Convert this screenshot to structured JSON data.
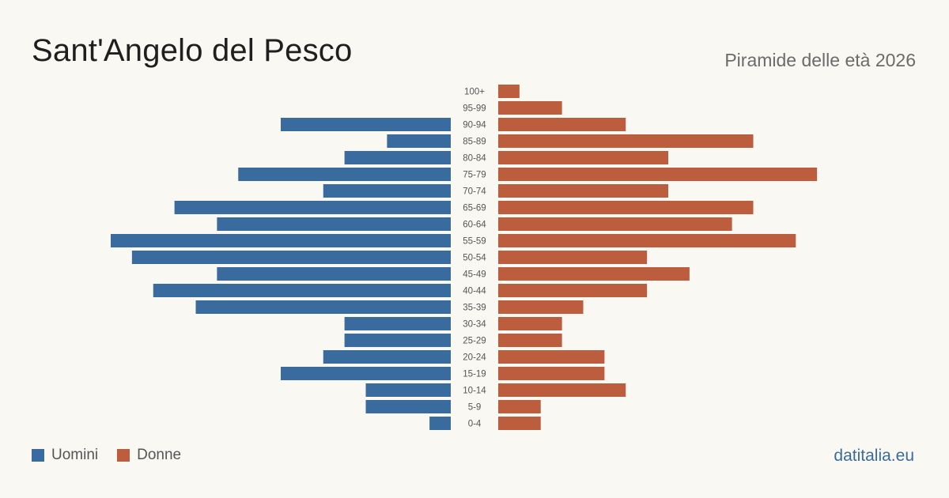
{
  "header": {
    "title": "Sant'Angelo del Pesco",
    "subtitle": "Piramide delle età 2026"
  },
  "legend": {
    "male_label": "Uomini",
    "female_label": "Donne"
  },
  "footer": {
    "site": "datitalia.eu"
  },
  "colors": {
    "male": "#3a6b9e",
    "female": "#bc5d3e",
    "site": "#3a6b9e"
  },
  "chart_data": {
    "type": "bar",
    "orientation": "horizontal-pyramid",
    "categories": [
      "100+",
      "95-99",
      "90-94",
      "85-89",
      "80-84",
      "75-79",
      "70-74",
      "65-69",
      "60-64",
      "55-59",
      "50-54",
      "45-49",
      "40-44",
      "35-39",
      "30-34",
      "25-29",
      "20-24",
      "15-19",
      "10-14",
      "5-9",
      "0-4"
    ],
    "series": [
      {
        "name": "Uomini",
        "values": [
          0,
          0,
          8,
          3,
          5,
          10,
          6,
          13,
          11,
          16,
          15,
          11,
          14,
          12,
          5,
          5,
          6,
          8,
          4,
          4,
          1
        ]
      },
      {
        "name": "Donne",
        "values": [
          1,
          3,
          6,
          12,
          8,
          15,
          8,
          12,
          11,
          14,
          7,
          9,
          7,
          4,
          3,
          3,
          5,
          5,
          6,
          2,
          2
        ]
      }
    ],
    "xlim": [
      0,
      16
    ],
    "legend_position": "bottom-left",
    "grid": false
  }
}
